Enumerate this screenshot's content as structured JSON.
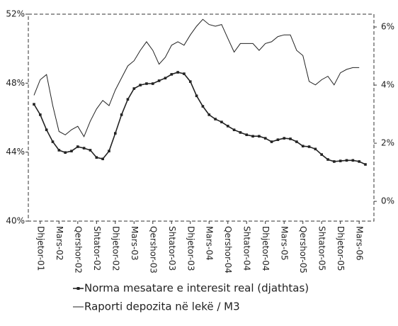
{
  "chart_data": {
    "type": "line",
    "categories": [
      null,
      "Dhjetor-01",
      null,
      null,
      "Mars-02",
      null,
      null,
      "Qershor-02",
      null,
      null,
      "Shtator-02",
      null,
      null,
      "Dhjetor-02",
      null,
      null,
      "Mars-03",
      null,
      null,
      "Qershor-03",
      null,
      null,
      "Shtator-03",
      null,
      null,
      "Dhjetor-03",
      null,
      null,
      "Mars-04",
      null,
      null,
      "Qershor-04",
      null,
      null,
      "Shtator-04",
      null,
      null,
      "Dhjetor-04",
      null,
      null,
      "Mars-05",
      null,
      null,
      "Qershor-05",
      null,
      null,
      "Shtator-05",
      null,
      null,
      "Dhjetor-05",
      null,
      null,
      "Mars-06",
      null
    ],
    "series": [
      {
        "name": "Norma mesatare e interesit real (djathtas)",
        "color": "#222222",
        "axis": "y2",
        "markers": true,
        "values": [
          3.34,
          2.98,
          2.46,
          2.05,
          1.76,
          1.68,
          1.73,
          1.88,
          1.83,
          1.76,
          1.51,
          1.46,
          1.73,
          2.34,
          2.98,
          3.51,
          3.88,
          4.0,
          4.05,
          4.05,
          4.15,
          4.24,
          4.37,
          4.44,
          4.39,
          4.12,
          3.63,
          3.27,
          2.98,
          2.83,
          2.73,
          2.59,
          2.46,
          2.37,
          2.29,
          2.24,
          2.24,
          2.17,
          2.05,
          2.12,
          2.17,
          2.15,
          2.05,
          1.9,
          1.88,
          1.8,
          1.61,
          1.44,
          1.37,
          1.39,
          1.41,
          1.41,
          1.37,
          1.27
        ]
      },
      {
        "name": "Raporti depozita në lekë / M3",
        "color": "#222222",
        "markers": false,
        "values": [
          47.3,
          48.2,
          48.5,
          46.7,
          45.2,
          45.0,
          45.3,
          45.5,
          44.9,
          45.8,
          46.5,
          47.0,
          46.7,
          47.6,
          48.3,
          49.0,
          49.3,
          49.9,
          50.4,
          49.9,
          49.1,
          49.5,
          50.2,
          50.4,
          50.2,
          50.8,
          51.3,
          51.7,
          51.4,
          51.3,
          51.4,
          50.6,
          49.8,
          50.3,
          50.3,
          50.3,
          49.9,
          50.3,
          50.4,
          50.7,
          50.8,
          50.8,
          49.9,
          49.6,
          48.1,
          47.9,
          48.2,
          48.4,
          47.9,
          48.6,
          48.8,
          48.9,
          48.9,
          null
        ]
      }
    ],
    "ylim": [
      40,
      52
    ],
    "yticks": [
      {
        "value": 40,
        "label": "40%"
      },
      {
        "value": 44,
        "label": "44%"
      },
      {
        "value": 48,
        "label": "48%"
      },
      {
        "value": 52,
        "label": "52%"
      }
    ],
    "y2lim": [
      -0.68,
      6.44
    ],
    "y2ticks": [
      {
        "value": 0,
        "label": "0%"
      },
      {
        "value": 2,
        "label": "2%"
      },
      {
        "value": 4,
        "label": "4%"
      },
      {
        "value": 6,
        "label": "6%"
      }
    ]
  }
}
